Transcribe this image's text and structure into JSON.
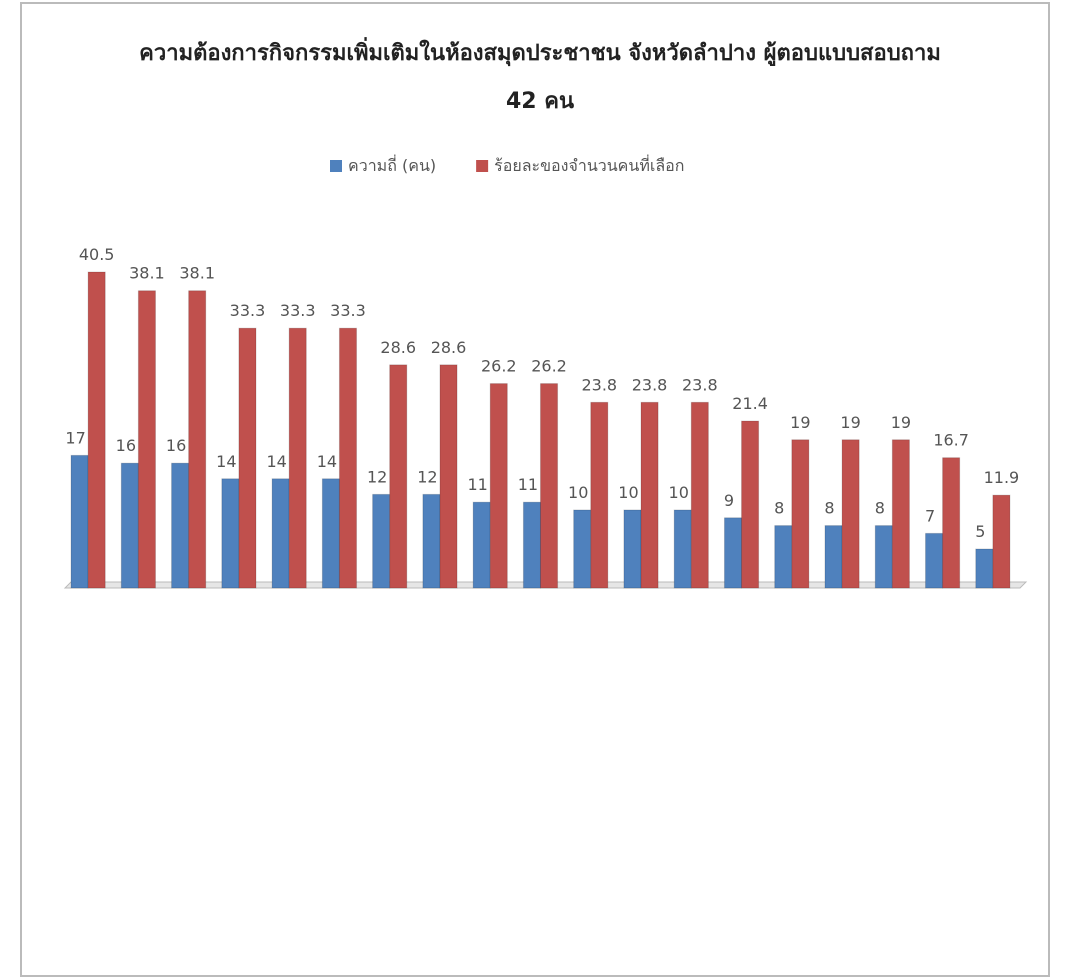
{
  "chart_data": {
    "type": "bar",
    "title": "ความต้องการกิจกรรมเพิ่มเติมในห้องสมุดประชาชน จังหวัดลำปาง ผู้ตอบแบบสอบถาม 42 คน",
    "categories": [
      null,
      null,
      null,
      null,
      null,
      null,
      null,
      null,
      null,
      null,
      null,
      null,
      null,
      null,
      null,
      null,
      null,
      null,
      null
    ],
    "series": [
      {
        "name": "ความถี่ (คน)",
        "color": "#4f81bd",
        "values": [
          17,
          16,
          16,
          14,
          14,
          14,
          12,
          12,
          11,
          11,
          10,
          10,
          10,
          9,
          8,
          8,
          8,
          7,
          5
        ]
      },
      {
        "name": "ร้อยละของจำนวนคนที่เลือก",
        "color": "#c0504d",
        "values": [
          40.5,
          38.1,
          38.1,
          33.3,
          33.3,
          33.3,
          28.6,
          28.6,
          26.2,
          26.2,
          23.8,
          23.8,
          23.8,
          21.4,
          19,
          19,
          19,
          16.7,
          11.9
        ]
      }
    ],
    "legend": "top"
  }
}
